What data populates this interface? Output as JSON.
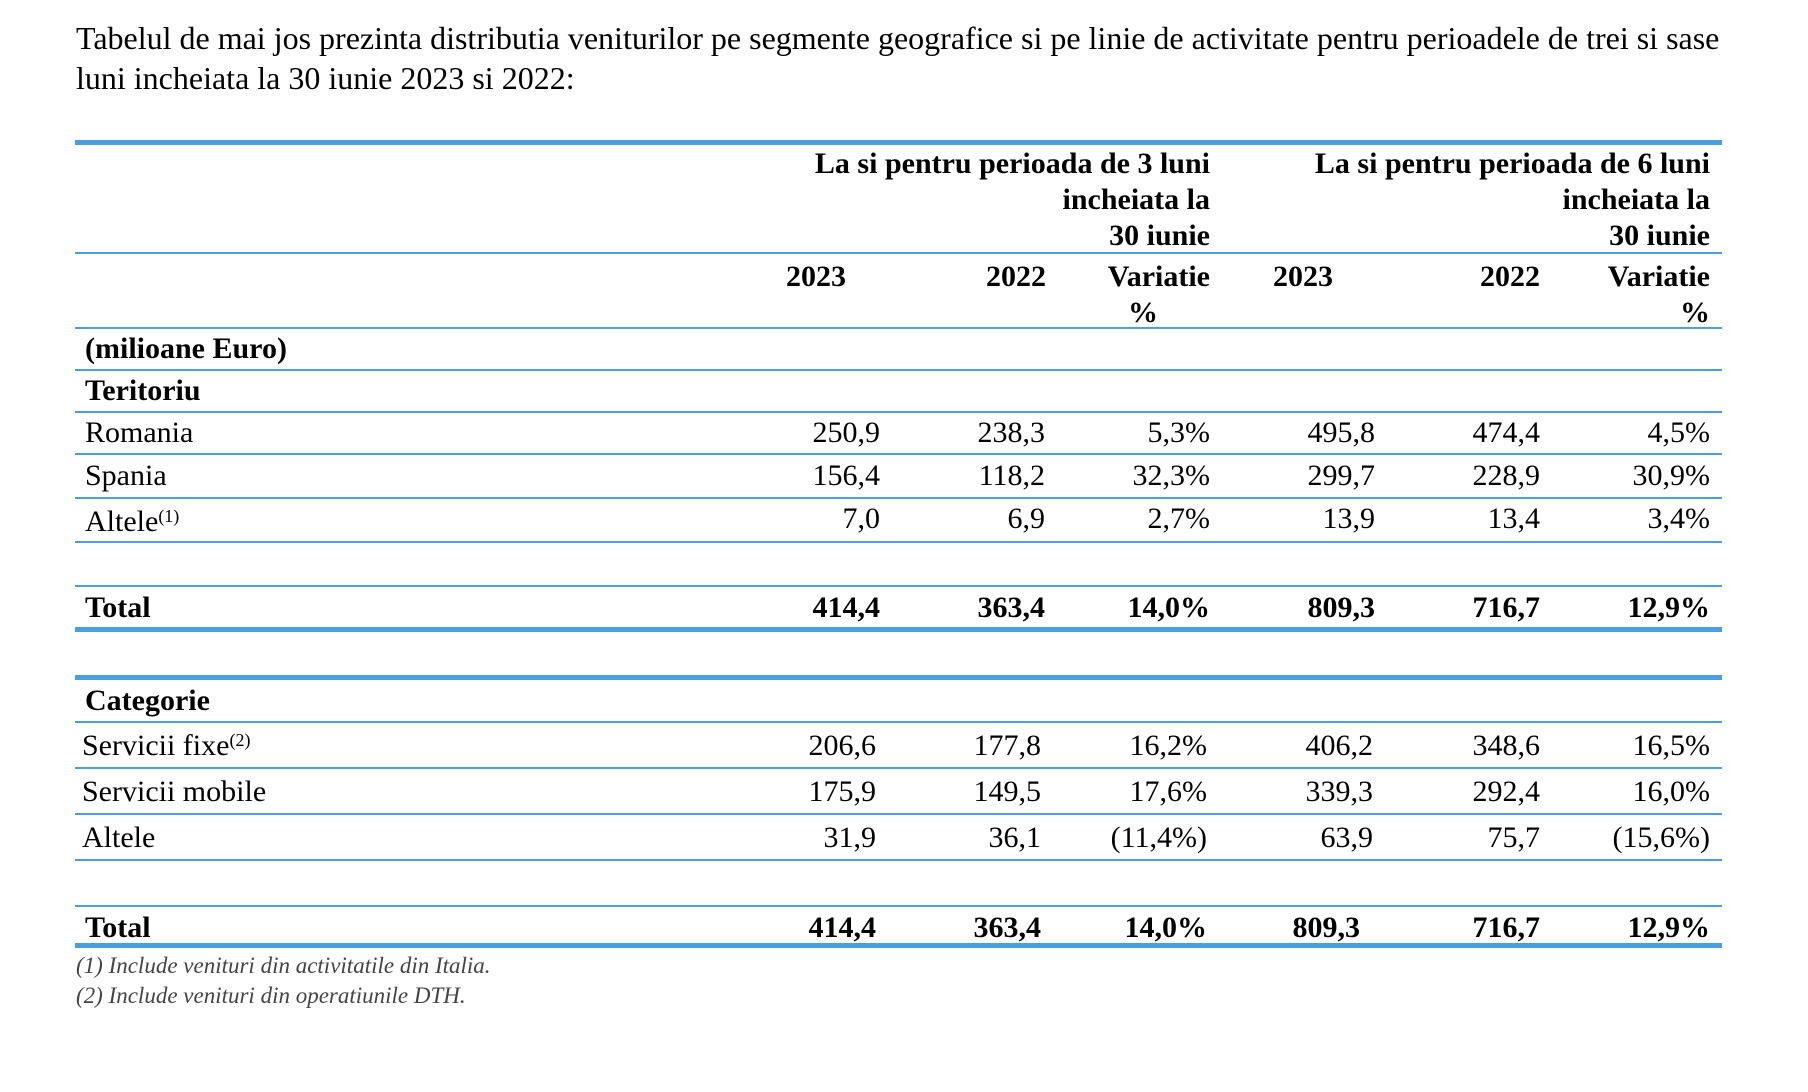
{
  "intro": "Tabelul de mai jos prezinta distributia veniturilor pe segmente geografice si pe linie de activitate pentru perioadele de trei si sase luni incheiata la 30 iunie 2023 si 2022:",
  "headers": {
    "group1": [
      "La si pentru perioada de 3 luni",
      "incheiata la",
      "30 iunie"
    ],
    "group2": [
      "La si pentru perioada de 6 luni",
      "incheiata la",
      "30 iunie"
    ],
    "columns": [
      "2023",
      "2022",
      "Variatie",
      "2023",
      "2022",
      "Variatie"
    ],
    "percent": "%"
  },
  "unit": "(milioane Euro)",
  "territory": {
    "title": "Teritoriu",
    "rows": [
      {
        "label": "Romania",
        "sup": "",
        "values": [
          "250,9",
          "238,3",
          "5,3%",
          "495,8",
          "474,4",
          "4,5%"
        ]
      },
      {
        "label": "Spania",
        "sup": "",
        "values": [
          "156,4",
          "118,2",
          "32,3%",
          "299,7",
          "228,9",
          "30,9%"
        ]
      },
      {
        "label": "Altele",
        "sup": "(1)",
        "values": [
          "7,0",
          "6,9",
          "2,7%",
          "13,9",
          "13,4",
          "3,4%"
        ]
      }
    ],
    "total": {
      "label": "Total",
      "values": [
        "414,4",
        "363,4",
        "14,0%",
        "809,3",
        "716,7",
        "12,9%"
      ]
    }
  },
  "category": {
    "title": "Categorie",
    "rows": [
      {
        "label": "Servicii fixe",
        "sup": "(2)",
        "values": [
          "206,6",
          "177,8",
          "16,2%",
          "406,2",
          "348,6",
          "16,5%"
        ]
      },
      {
        "label": "Servicii mobile",
        "sup": "",
        "values": [
          "175,9",
          "149,5",
          "17,6%",
          "339,3",
          "292,4",
          "16,0%"
        ]
      },
      {
        "label": "Altele",
        "sup": "",
        "values": [
          "31,9",
          "36,1",
          "(11,4%)",
          "63,9",
          "75,7",
          "(15,6%)"
        ]
      }
    ],
    "total": {
      "label": "Total",
      "values": [
        "414,4",
        "363,4",
        "14,0%",
        "809,3",
        "716,7",
        "12,9%"
      ]
    }
  },
  "footnotes": [
    "(1)   Include venituri din activitatile din Italia.",
    "(2)  Include venituri din operatiunile DTH."
  ]
}
